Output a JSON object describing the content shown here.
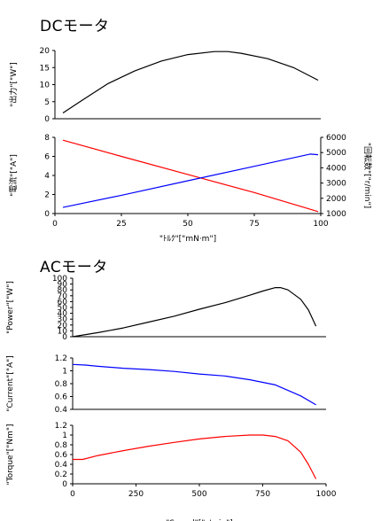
{
  "dc_title": "DCモータ",
  "ac_title": "ACモータ",
  "chart_data": [
    {
      "type": "line",
      "group": "dc",
      "ylabel": "\"出力\"[\"W\"]",
      "ylim": [
        0,
        20
      ],
      "yticks": [
        0,
        5,
        10,
        15,
        20
      ],
      "xlim": [
        0,
        100
      ],
      "series": [
        {
          "color": "#000000",
          "x": [
            3,
            10,
            20,
            30,
            40,
            50,
            60,
            65,
            70,
            80,
            90,
            99
          ],
          "y": [
            1.7,
            5.3,
            10.3,
            14.0,
            16.9,
            18.8,
            19.7,
            19.7,
            19.2,
            17.6,
            14.9,
            11.3
          ]
        }
      ]
    },
    {
      "type": "line",
      "group": "dc",
      "ylabel": "\"電流\"[\"A\"]",
      "ylim": [
        0,
        8
      ],
      "yticks": [
        0,
        2,
        4,
        6,
        8
      ],
      "y2label": "\"回転数\"[\"r/min\"]",
      "y2lim": [
        1000,
        6000
      ],
      "y2ticks": [
        1000,
        2000,
        3000,
        4000,
        5000,
        6000
      ],
      "xlabel": "\"ﾄﾙｸ\"[\"mN·m\"]",
      "xlim": [
        0,
        100
      ],
      "xticks": [
        0,
        25,
        50,
        75,
        100
      ],
      "series": [
        {
          "color": "#ff0000",
          "axis": "left",
          "x": [
            3,
            25,
            50,
            75,
            99
          ],
          "y": [
            7.7,
            6.0,
            4.1,
            2.2,
            0.2
          ]
        },
        {
          "color": "#0000ff",
          "axis": "right",
          "x": [
            3,
            25,
            50,
            75,
            96,
            99
          ],
          "y": [
            1400,
            2200,
            3150,
            4100,
            4900,
            4860
          ]
        }
      ]
    },
    {
      "type": "line",
      "group": "ac",
      "ylabel": "\"Power\"[\"W\"]",
      "ylim": [
        0,
        100
      ],
      "yticks": [
        0,
        10,
        20,
        30,
        40,
        50,
        60,
        70,
        80,
        90,
        100
      ],
      "xlim": [
        0,
        1000
      ],
      "series": [
        {
          "color": "#000000",
          "x": [
            0,
            100,
            200,
            300,
            400,
            500,
            600,
            700,
            750,
            800,
            820,
            850,
            900,
            930,
            960
          ],
          "y": [
            0,
            7,
            15,
            25,
            35,
            47,
            58,
            71,
            78,
            84,
            84,
            80,
            64,
            46,
            18
          ]
        }
      ]
    },
    {
      "type": "line",
      "group": "ac",
      "ylabel": "\"Current\"[\"A\"]",
      "ylim": [
        0.4,
        1.2
      ],
      "yticks": [
        0.4,
        0.6,
        0.8,
        1,
        1.2
      ],
      "xlim": [
        0,
        1000
      ],
      "series": [
        {
          "color": "#0000ff",
          "x": [
            0,
            50,
            100,
            200,
            300,
            400,
            500,
            600,
            700,
            800,
            900,
            960
          ],
          "y": [
            1.1,
            1.09,
            1.07,
            1.04,
            1.02,
            0.99,
            0.95,
            0.92,
            0.86,
            0.78,
            0.61,
            0.47
          ]
        }
      ]
    },
    {
      "type": "line",
      "group": "ac",
      "ylabel": "\"Torque\"[\"Nm\"]",
      "ylim": [
        0,
        1.2
      ],
      "yticks": [
        0,
        0.2,
        0.4,
        0.6,
        0.8,
        1,
        1.2
      ],
      "xlabel": "\"Speed\"[\"r/min\"]",
      "xlim": [
        0,
        1000
      ],
      "xticks": [
        0,
        250,
        500,
        750,
        1000
      ],
      "series": [
        {
          "color": "#ff0000",
          "x": [
            0,
            40,
            100,
            200,
            300,
            400,
            500,
            600,
            700,
            750,
            800,
            850,
            900,
            930,
            960
          ],
          "y": [
            0.5,
            0.5,
            0.58,
            0.68,
            0.77,
            0.85,
            0.92,
            0.97,
            1.0,
            1.0,
            0.97,
            0.88,
            0.65,
            0.4,
            0.1
          ]
        }
      ]
    }
  ]
}
